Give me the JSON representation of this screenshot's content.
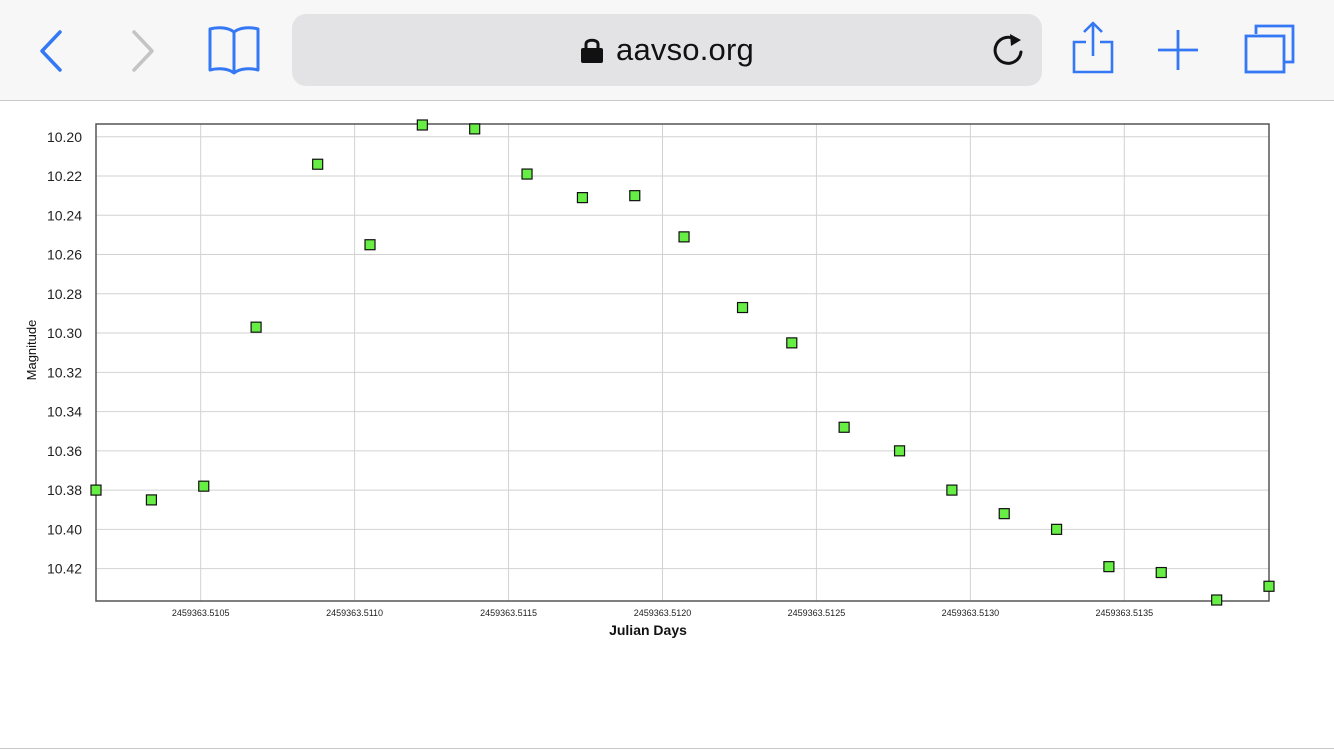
{
  "browser": {
    "url": "aavso.org",
    "icons": {
      "back": "chevron-left-icon",
      "forward": "chevron-right-icon",
      "bookmarks": "book-icon",
      "lock": "lock-icon",
      "reload": "reload-icon",
      "share": "share-icon",
      "new_tab": "plus-icon",
      "tabs": "tabs-icon"
    },
    "accent_color": "#3478f6",
    "disabled_color": "#c4c4c6"
  },
  "chart_data": {
    "type": "scatter",
    "xlabel": "Julian Days",
    "ylabel": "Magnitude",
    "y_inverted": true,
    "xlim": [
      2459363.51016,
      2459363.51397
    ],
    "ylim": [
      10.1935,
      10.4365
    ],
    "x_ticks": [
      2459363.5105,
      2459363.511,
      2459363.5115,
      2459363.512,
      2459363.5125,
      2459363.513,
      2459363.5135
    ],
    "x_tick_labels": [
      "2459363.5105",
      "2459363.5110",
      "2459363.5115",
      "2459363.5120",
      "2459363.5125",
      "2459363.5130",
      "2459363.5135"
    ],
    "y_ticks": [
      10.2,
      10.22,
      10.24,
      10.26,
      10.28,
      10.3,
      10.32,
      10.34,
      10.36,
      10.38,
      10.4,
      10.42
    ],
    "y_tick_labels": [
      "10.20",
      "10.22",
      "10.24",
      "10.26",
      "10.28",
      "10.30",
      "10.32",
      "10.34",
      "10.36",
      "10.38",
      "10.40",
      "10.42"
    ],
    "grid": true,
    "marker": "square",
    "marker_color": "#66ee44",
    "marker_edge_color": "#111111",
    "x": [
      2459363.51016,
      2459363.51034,
      2459363.51051,
      2459363.51068,
      2459363.51088,
      2459363.51105,
      2459363.51122,
      2459363.51139,
      2459363.51156,
      2459363.51174,
      2459363.51191,
      2459363.51207,
      2459363.51226,
      2459363.51242,
      2459363.51259,
      2459363.51277,
      2459363.51294,
      2459363.51311,
      2459363.51328,
      2459363.51345,
      2459363.51362,
      2459363.5138,
      2459363.51397
    ],
    "y": [
      10.38,
      10.385,
      10.378,
      10.297,
      10.214,
      10.255,
      10.194,
      10.196,
      10.219,
      10.231,
      10.23,
      10.251,
      10.287,
      10.305,
      10.348,
      10.36,
      10.38,
      10.392,
      10.4,
      10.419,
      10.422,
      10.436,
      10.429
    ]
  }
}
